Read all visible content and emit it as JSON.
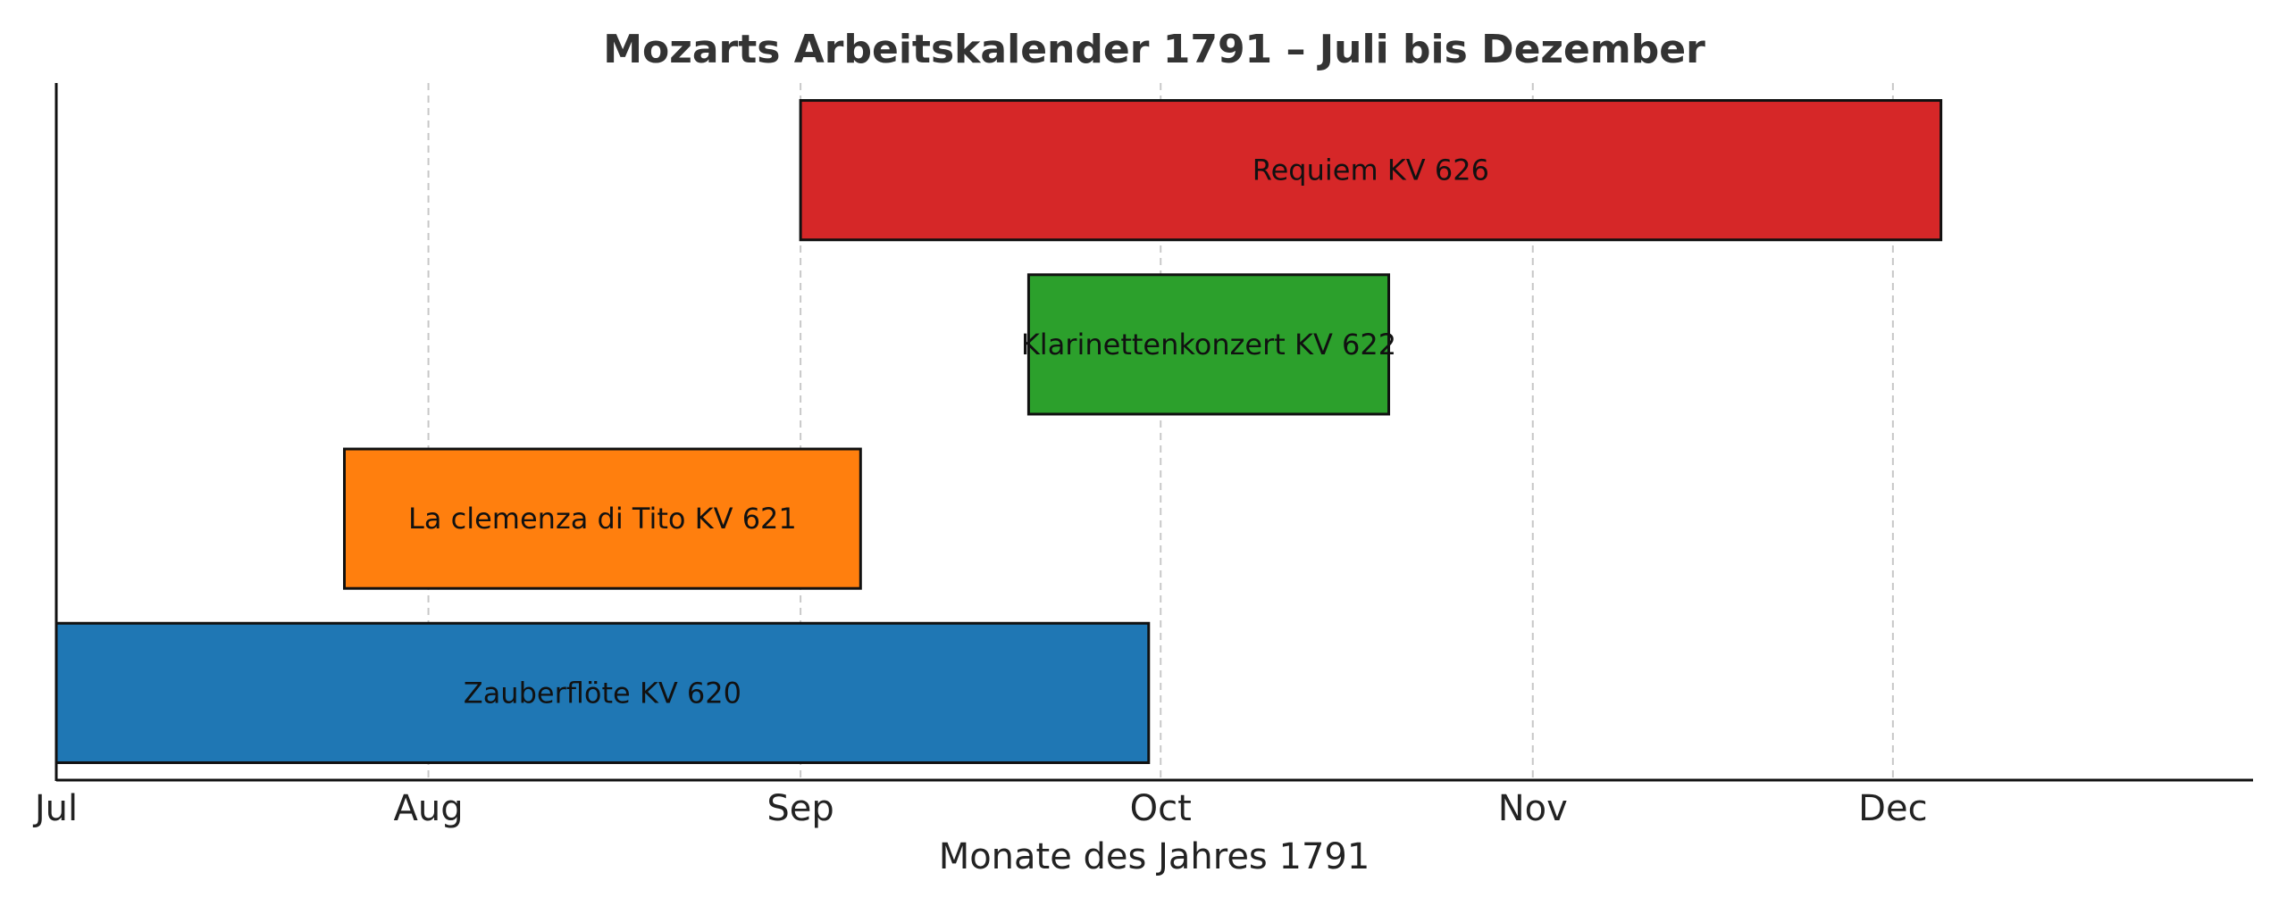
{
  "chart_data": {
    "type": "gantt",
    "title": "Mozarts Arbeitskalender 1791 – Juli bis Dezember",
    "xlabel": "Monate des Jahres 1791",
    "ylabel": "",
    "xlim": [
      "1791-07-01",
      "1791-12-31"
    ],
    "x_ticks": [
      {
        "date": "1791-07-01",
        "label": "Jul"
      },
      {
        "date": "1791-08-01",
        "label": "Aug"
      },
      {
        "date": "1791-09-01",
        "label": "Sep"
      },
      {
        "date": "1791-10-01",
        "label": "Oct"
      },
      {
        "date": "1791-11-01",
        "label": "Nov"
      },
      {
        "date": "1791-12-01",
        "label": "Dec"
      }
    ],
    "grid": "vertical dashed",
    "tasks": [
      {
        "label": "Zauberflöte KV 620",
        "start": "1791-07-01",
        "end": "1791-09-30",
        "color": "#1f77b4"
      },
      {
        "label": "La clemenza di Tito KV 621",
        "start": "1791-07-25",
        "end": "1791-09-06",
        "color": "#ff7f0e"
      },
      {
        "label": "Klarinettenkonzert KV 622",
        "start": "1791-09-20",
        "end": "1791-10-20",
        "color": "#2ca02c"
      },
      {
        "label": "Requiem KV 626",
        "start": "1791-09-01",
        "end": "1791-12-05",
        "color": "#d62728"
      }
    ]
  }
}
